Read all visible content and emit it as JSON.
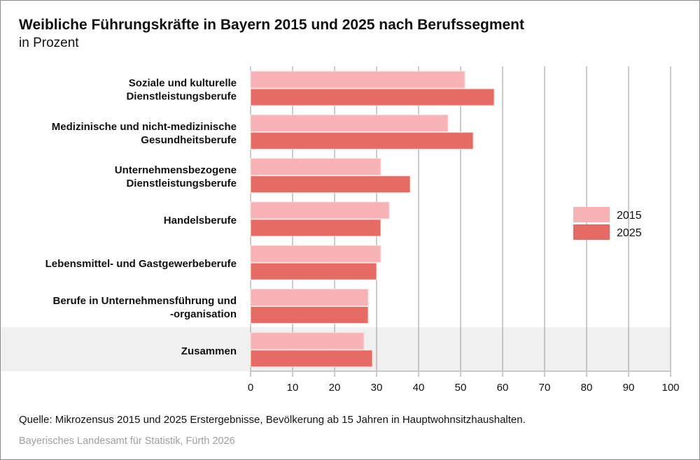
{
  "header": {
    "title": "Weibliche Führungskräfte in Bayern 2015 und 2025 nach Berufssegment",
    "subtitle": "in Prozent"
  },
  "footer": {
    "source": "Quelle: Mikrozensus 2015 und 2025 Erstergebnisse, Bevölkerung ab 15 Jahren in Hauptwohnsitzhaushalten.",
    "credit": "Bayerisches Landesamt für Statistik, Fürth 2026"
  },
  "chart_data": {
    "type": "bar",
    "orientation": "horizontal",
    "title": "Weibliche Führungskräfte in Bayern 2015 und 2025 nach Berufssegment",
    "subtitle": "in Prozent",
    "categories": [
      [
        "Soziale und kulturelle",
        "Dienstleistungsberufe"
      ],
      [
        "Medizinische und nicht-medizinische",
        "Gesundheitsberufe"
      ],
      [
        "Unternehmensbezogene",
        "Dienstleistungsberufe"
      ],
      [
        "Handelsberufe"
      ],
      [
        "Lebensmittel- und Gastgewerbeberufe"
      ],
      [
        "Berufe in Unternehmensführung und",
        "-organisation"
      ],
      [
        "Zusammen"
      ]
    ],
    "series": [
      {
        "name": "2015",
        "color": "#f7b2b5",
        "values": [
          51,
          47,
          31,
          33,
          31,
          28,
          27
        ]
      },
      {
        "name": "2025",
        "color": "#e66b64",
        "values": [
          58,
          53,
          38,
          31,
          30,
          28,
          29
        ]
      }
    ],
    "xlim": [
      0,
      100
    ],
    "xticks": [
      "0",
      "10",
      "20",
      "30",
      "40",
      "50",
      "60",
      "70",
      "80",
      "90",
      "100"
    ],
    "grid": true,
    "legend": "right",
    "highlight_category": "Zusammen",
    "highlight_color": "#f0f0f0"
  }
}
